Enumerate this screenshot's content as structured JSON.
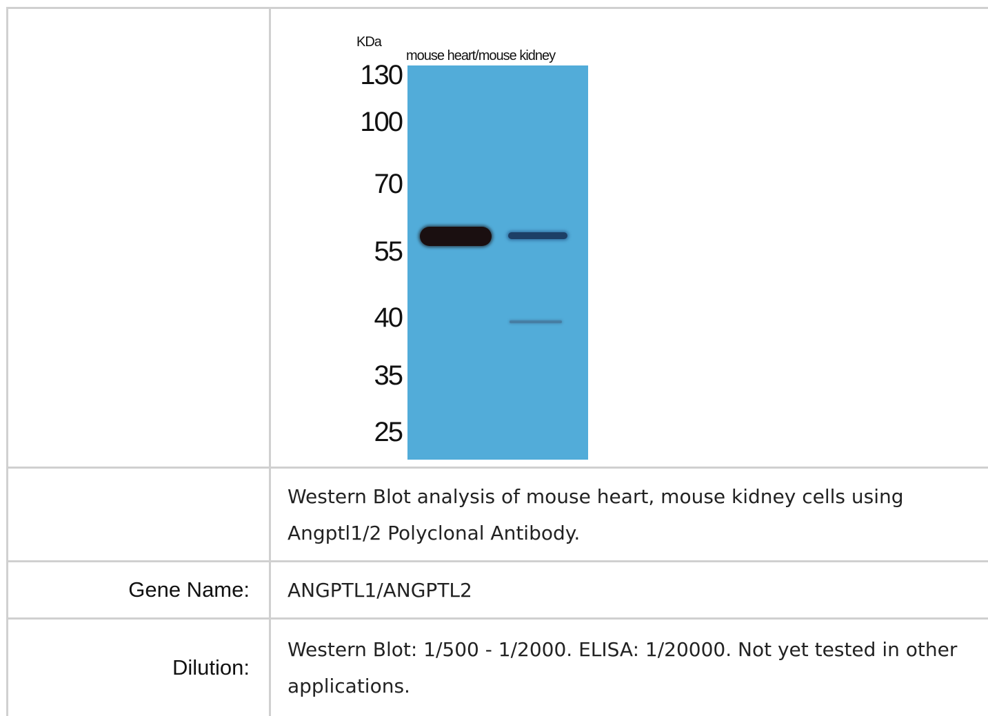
{
  "figure": {
    "kda_label": "KDa",
    "lane_label": "mouse heart/mouse kidney",
    "markers": [
      "130",
      "100",
      "70",
      "55",
      "40",
      "35",
      "25"
    ],
    "membrane_color": "#52acd9"
  },
  "caption": "Western Blot analysis of mouse heart, mouse kidney cells using Angptl1/2 Polyclonal Antibody.",
  "gene": {
    "label": "Gene Name:",
    "value": "ANGPTL1/ANGPTL2"
  },
  "dilution": {
    "label": "Dilution:",
    "value": "Western Blot: 1/500 - 1/2000. ELISA: 1/20000. Not yet tested in other applications."
  }
}
